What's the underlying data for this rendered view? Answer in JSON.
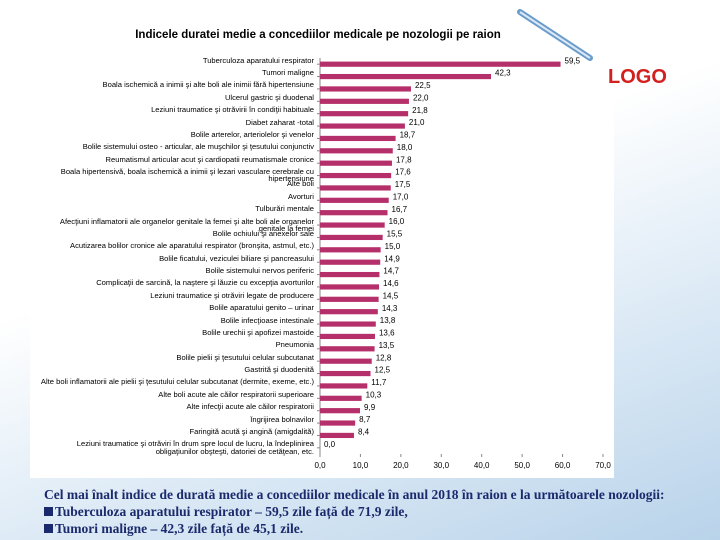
{
  "logo": "LOGO",
  "notes": {
    "intro": "Cel mai înalt indice de durată medie a concediilor medicale în anul 2018 în raion e la următoarele nozologii:",
    "bullets": [
      "Tuberculoza aparatului respirator – 59,5 zile față de 71,9 zile,",
      "Tumori maligne – 42,3 zile față de 45,1 zile."
    ]
  },
  "chart_data": {
    "type": "hbar",
    "title": "Indicele duratei medie a concediilor medicale pe nozologii pe raion",
    "color": "#b5306a",
    "categories": [
      "Tuberculoza aparatului respirator",
      "Tumori maligne",
      "Boala ischemică a inimii şi alte boli ale inimii fără hipertensiune",
      "Ulcerul gastric şi duodenal",
      "Leziuni traumatice şi otrăvirii în condiţii habituale",
      "Diabet zaharat -total",
      "Bolile arterelor, arteriolelor şi venelor",
      "Bolile sistemului osteo - articular, ale muşchilor şi ţesutului conjunctiv",
      "Reumatismul articular acut şi cardiopatii reumatismale cronice",
      "Boala hipertensivă, boala ischemică a inimii şi lezari vasculare cerebrale cu hipertensiune",
      "Alte boli",
      "Avorturi",
      "Tulburări mentale",
      "Afecţiuni inflamatorii ale organelor genitale la femei şi alte boli ale organelor genitale la femei",
      "Bolile ochiului şi anexelor sale",
      "Acutizarea bolilor cronice ale aparatului respirator (bronşita, astmul, etc.)",
      "Bolile ficatului, veziculei biliare şi pancreasului",
      "Bolile sistemului nervos periferic",
      "Complicaţii de sarcină, la naştere şi lăuzie cu excepţia avorturilor",
      "Leziuni traumatice şi otrăviri legate de producere",
      "Bolile aparatului genito – urinar",
      "Bolile infecţioase intestinale",
      "Bolile urechii şi apofizei mastoide",
      "Pneumonia",
      "Bolile pielii şi ţesutului celular subcutanat",
      "Gastrită şi duodenită",
      "Alte boli inflamatorii ale pielii şi ţesutului celular subcutanat (dermite, exeme, etc.)",
      "Alte boli acute ale căilor respiratorii superioare",
      "Alte infecţii acute ale căilor respiratorii",
      "Îngrijirea bolnavilor",
      "Faringită acută şi angină (amigdalită)",
      "Leziuni traumatice şi otrăviri în drum spre locul de lucru, la îndeplinirea obligaţiunilor obşteşti, datoriei de cetăţean, etc."
    ],
    "values": [
      59.5,
      42.3,
      22.5,
      22.0,
      21.8,
      21.0,
      18.7,
      18.0,
      17.8,
      17.6,
      17.5,
      17.0,
      16.7,
      16.0,
      15.5,
      15.0,
      14.9,
      14.7,
      14.6,
      14.5,
      14.3,
      13.8,
      13.6,
      13.5,
      12.8,
      12.5,
      11.7,
      10.3,
      9.9,
      8.7,
      8.4,
      0.0
    ],
    "value_labels": [
      "59,5",
      "42,3",
      "22,5",
      "22,0",
      "21,8",
      "21,0",
      "18,7",
      "18,0",
      "17,8",
      "17,6",
      "17,5",
      "17,0",
      "16,7",
      "16,0",
      "15,5",
      "15,0",
      "14,9",
      "14,7",
      "14,6",
      "14,5",
      "14,3",
      "13,8",
      "13,6",
      "13,5",
      "12,8",
      "12,5",
      "11,7",
      "10,3",
      "9,9",
      "8,7",
      "8,4",
      "0,0"
    ],
    "xlim": [
      0,
      70
    ],
    "xticks": [
      {
        "value": 0,
        "label": "0,0"
      },
      {
        "value": 10,
        "label": "10,0"
      },
      {
        "value": 20,
        "label": "20,0"
      },
      {
        "value": 30,
        "label": "30,0"
      },
      {
        "value": 40,
        "label": "40,0"
      },
      {
        "value": 50,
        "label": "50,0"
      },
      {
        "value": 60,
        "label": "60,0"
      },
      {
        "value": 70,
        "label": "70,0"
      }
    ]
  }
}
